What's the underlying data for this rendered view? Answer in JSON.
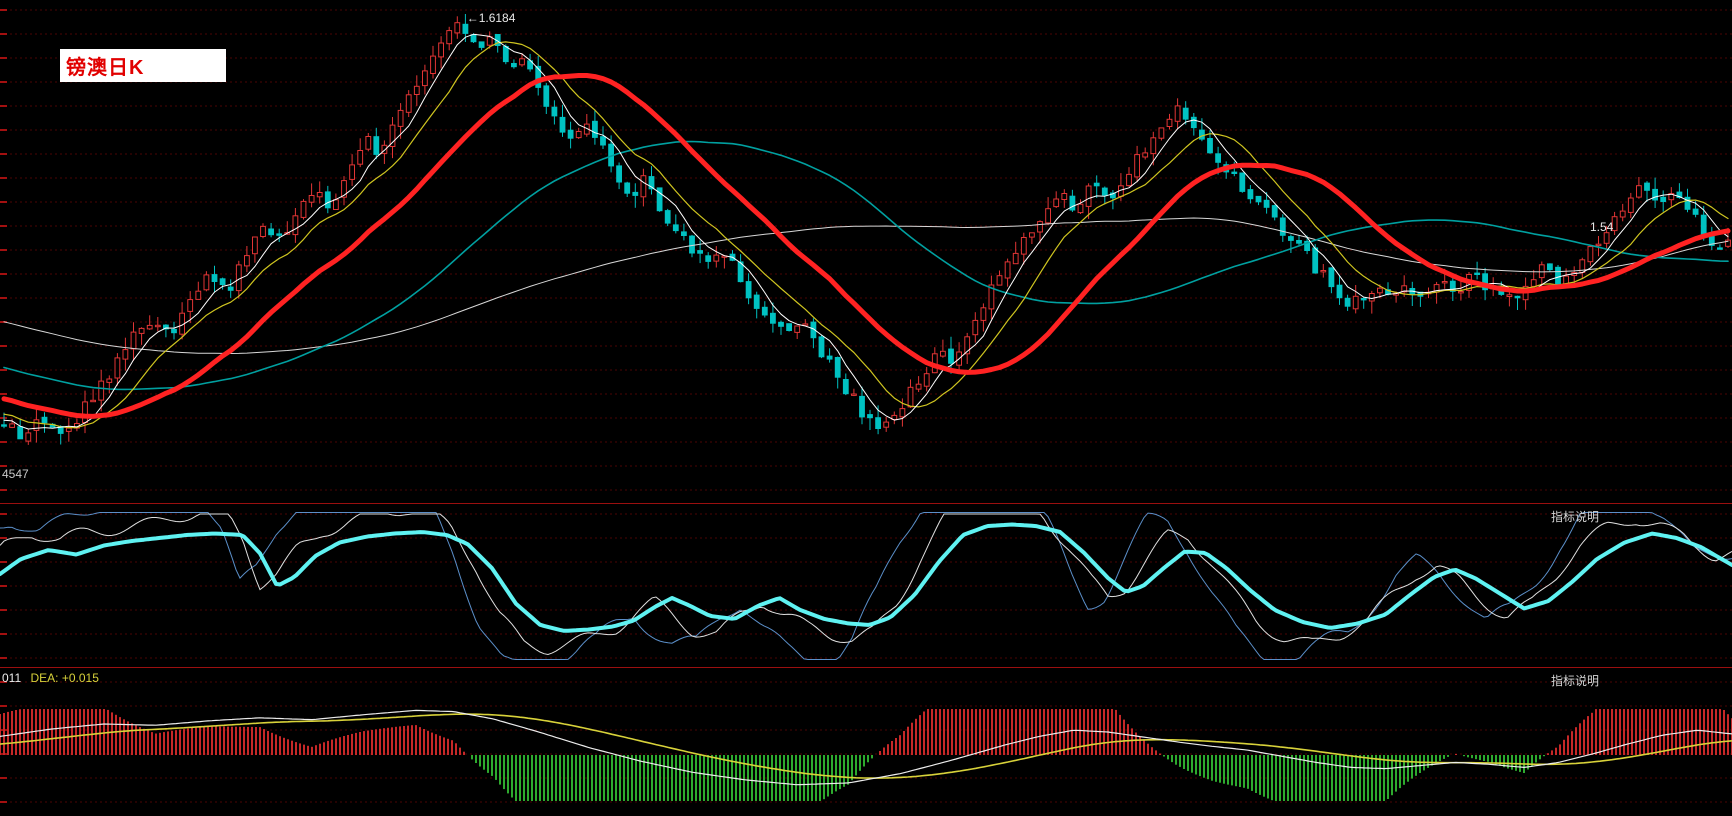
{
  "app": {
    "title": "镑澳日K",
    "indicator_help_label": "指标说明"
  },
  "theme": {
    "background": "#000000",
    "grid_color": "#4d0404",
    "grid_tick_color": "#a31010",
    "separator_color": "#9a0f0f",
    "up_color": "#e23535",
    "down_color": "#00c2c2",
    "thick_ma_color": "#ff2222",
    "dif_color": "#ececec",
    "dea_color": "#d8d23a",
    "annotation_color": "#e8e8e8",
    "title_color": "#e10000",
    "title_bg": "#ffffff"
  },
  "main_chart": {
    "annotations": {
      "peak": {
        "text": "←1.6184",
        "x": 0.266,
        "price": 1.6184
      },
      "last": {
        "text": "1.54",
        "x": 0.918,
        "price": 1.54
      },
      "low_left": {
        "text": "4547",
        "x": 0.0,
        "price": 1.4547
      }
    }
  },
  "macd": {
    "label_prefix": "011",
    "label_dea": "DEA: +0.015"
  },
  "chart_data": [
    {
      "type": "candlestick",
      "title": "镑澳日K",
      "price_axis": {
        "min": 1.448,
        "max": 1.625
      },
      "key_levels": {
        "peak": 1.6184,
        "trough": 1.4547,
        "last": 1.54
      },
      "candle_count": 214,
      "price_path": [
        [
          0.0,
          1.476
        ],
        [
          0.01,
          1.469
        ],
        [
          0.022,
          1.478
        ],
        [
          0.034,
          1.472
        ],
        [
          0.046,
          1.48
        ],
        [
          0.058,
          1.49
        ],
        [
          0.072,
          1.503
        ],
        [
          0.085,
          1.512
        ],
        [
          0.095,
          1.506
        ],
        [
          0.108,
          1.518
        ],
        [
          0.12,
          1.528
        ],
        [
          0.13,
          1.522
        ],
        [
          0.142,
          1.538
        ],
        [
          0.152,
          1.546
        ],
        [
          0.162,
          1.539
        ],
        [
          0.172,
          1.552
        ],
        [
          0.182,
          1.56
        ],
        [
          0.19,
          1.551
        ],
        [
          0.2,
          1.566
        ],
        [
          0.21,
          1.576
        ],
        [
          0.218,
          1.568
        ],
        [
          0.228,
          1.583
        ],
        [
          0.238,
          1.594
        ],
        [
          0.248,
          1.604
        ],
        [
          0.258,
          1.612
        ],
        [
          0.266,
          1.617
        ],
        [
          0.274,
          1.606
        ],
        [
          0.282,
          1.612
        ],
        [
          0.292,
          1.6
        ],
        [
          0.3,
          1.605
        ],
        [
          0.31,
          1.592
        ],
        [
          0.32,
          1.584
        ],
        [
          0.33,
          1.575
        ],
        [
          0.34,
          1.58
        ],
        [
          0.352,
          1.566
        ],
        [
          0.362,
          1.556
        ],
        [
          0.372,
          1.561
        ],
        [
          0.384,
          1.548
        ],
        [
          0.396,
          1.54
        ],
        [
          0.408,
          1.53
        ],
        [
          0.418,
          1.536
        ],
        [
          0.43,
          1.522
        ],
        [
          0.442,
          1.514
        ],
        [
          0.452,
          1.506
        ],
        [
          0.462,
          1.513
        ],
        [
          0.474,
          1.5
        ],
        [
          0.486,
          1.49
        ],
        [
          0.498,
          1.479
        ],
        [
          0.51,
          1.472
        ],
        [
          0.52,
          1.481
        ],
        [
          0.532,
          1.492
        ],
        [
          0.544,
          1.501
        ],
        [
          0.552,
          1.495
        ],
        [
          0.562,
          1.51
        ],
        [
          0.572,
          1.521
        ],
        [
          0.582,
          1.531
        ],
        [
          0.592,
          1.54
        ],
        [
          0.602,
          1.548
        ],
        [
          0.612,
          1.558
        ],
        [
          0.62,
          1.551
        ],
        [
          0.63,
          1.56
        ],
        [
          0.64,
          1.553
        ],
        [
          0.65,
          1.562
        ],
        [
          0.66,
          1.571
        ],
        [
          0.67,
          1.58
        ],
        [
          0.68,
          1.588
        ],
        [
          0.69,
          1.581
        ],
        [
          0.7,
          1.572
        ],
        [
          0.712,
          1.563
        ],
        [
          0.724,
          1.554
        ],
        [
          0.736,
          1.547
        ],
        [
          0.748,
          1.54
        ],
        [
          0.76,
          1.531
        ],
        [
          0.772,
          1.523
        ],
        [
          0.782,
          1.517
        ],
        [
          0.792,
          1.524
        ],
        [
          0.802,
          1.519
        ],
        [
          0.812,
          1.526
        ],
        [
          0.822,
          1.52
        ],
        [
          0.832,
          1.527
        ],
        [
          0.842,
          1.521
        ],
        [
          0.852,
          1.527
        ],
        [
          0.862,
          1.522
        ],
        [
          0.872,
          1.518
        ],
        [
          0.882,
          1.524
        ],
        [
          0.892,
          1.529
        ],
        [
          0.902,
          1.525
        ],
        [
          0.912,
          1.531
        ],
        [
          0.922,
          1.538
        ],
        [
          0.932,
          1.546
        ],
        [
          0.942,
          1.553
        ],
        [
          0.952,
          1.559
        ],
        [
          0.96,
          1.553
        ],
        [
          0.97,
          1.557
        ],
        [
          0.98,
          1.548
        ],
        [
          0.99,
          1.537
        ],
        [
          1.0,
          1.54
        ]
      ],
      "ma_lines": [
        {
          "name": "MA5",
          "period": 5,
          "color": "#ffffff",
          "width": 1
        },
        {
          "name": "MA10",
          "period": 10,
          "color": "#cfc520",
          "width": 1.2
        },
        {
          "name": "MA24",
          "period": 24,
          "color": "#ff2222",
          "width": 5
        },
        {
          "name": "MA55",
          "period": 55,
          "color": "#00a0a0",
          "width": 1.6
        },
        {
          "name": "MA100",
          "period": 100,
          "color": "#d8d8d8",
          "width": 1
        }
      ]
    },
    {
      "type": "line",
      "title": "oscillator-panel",
      "range": [
        0,
        100
      ],
      "series": [
        {
          "name": "main-thick-cyan",
          "color": "#5ff2f2",
          "width": 4,
          "keyframes": [
            [
              0.0,
              58
            ],
            [
              0.012,
              68
            ],
            [
              0.028,
              74
            ],
            [
              0.044,
              71
            ],
            [
              0.06,
              77
            ],
            [
              0.076,
              80
            ],
            [
              0.092,
              82
            ],
            [
              0.108,
              84
            ],
            [
              0.124,
              85
            ],
            [
              0.14,
              84
            ],
            [
              0.15,
              72
            ],
            [
              0.16,
              50
            ],
            [
              0.17,
              56
            ],
            [
              0.182,
              70
            ],
            [
              0.196,
              79
            ],
            [
              0.212,
              83
            ],
            [
              0.228,
              85
            ],
            [
              0.244,
              86
            ],
            [
              0.258,
              84
            ],
            [
              0.27,
              78
            ],
            [
              0.284,
              62
            ],
            [
              0.298,
              38
            ],
            [
              0.312,
              24
            ],
            [
              0.326,
              20
            ],
            [
              0.34,
              21
            ],
            [
              0.354,
              23
            ],
            [
              0.366,
              27
            ],
            [
              0.378,
              36
            ],
            [
              0.388,
              42
            ],
            [
              0.398,
              37
            ],
            [
              0.41,
              30
            ],
            [
              0.424,
              28
            ],
            [
              0.438,
              37
            ],
            [
              0.45,
              42
            ],
            [
              0.462,
              34
            ],
            [
              0.476,
              28
            ],
            [
              0.49,
              25
            ],
            [
              0.502,
              24
            ],
            [
              0.514,
              29
            ],
            [
              0.528,
              44
            ],
            [
              0.542,
              66
            ],
            [
              0.556,
              84
            ],
            [
              0.57,
              90
            ],
            [
              0.584,
              91
            ],
            [
              0.598,
              90
            ],
            [
              0.612,
              86
            ],
            [
              0.626,
              72
            ],
            [
              0.64,
              55
            ],
            [
              0.65,
              46
            ],
            [
              0.66,
              50
            ],
            [
              0.672,
              62
            ],
            [
              0.684,
              73
            ],
            [
              0.696,
              72
            ],
            [
              0.708,
              62
            ],
            [
              0.722,
              47
            ],
            [
              0.736,
              34
            ],
            [
              0.752,
              26
            ],
            [
              0.768,
              22
            ],
            [
              0.784,
              25
            ],
            [
              0.8,
              31
            ],
            [
              0.814,
              44
            ],
            [
              0.828,
              56
            ],
            [
              0.84,
              61
            ],
            [
              0.852,
              55
            ],
            [
              0.866,
              45
            ],
            [
              0.88,
              35
            ],
            [
              0.894,
              40
            ],
            [
              0.908,
              53
            ],
            [
              0.922,
              68
            ],
            [
              0.938,
              79
            ],
            [
              0.954,
              85
            ],
            [
              0.968,
              82
            ],
            [
              0.982,
              76
            ],
            [
              1.0,
              64
            ]
          ]
        },
        {
          "name": "thin-white",
          "color": "#e0e0e0",
          "width": 1,
          "derived": "lead 0.010 gain 1.35"
        },
        {
          "name": "thin-blue",
          "color": "#5b8fc9",
          "width": 1,
          "derived": "lead 0.022 gain 1.8"
        }
      ]
    },
    {
      "type": "macd",
      "label": "011 DEA: +0.015",
      "dea_value": "+0.015",
      "bar_colors": {
        "positive": "#c62828",
        "negative": "#2eaa2e"
      },
      "dif_keyframes": [
        [
          0.0,
          0.3
        ],
        [
          0.03,
          0.42
        ],
        [
          0.06,
          0.5
        ],
        [
          0.09,
          0.48
        ],
        [
          0.12,
          0.55
        ],
        [
          0.15,
          0.6
        ],
        [
          0.18,
          0.57
        ],
        [
          0.21,
          0.65
        ],
        [
          0.24,
          0.72
        ],
        [
          0.262,
          0.7
        ],
        [
          0.285,
          0.58
        ],
        [
          0.31,
          0.38
        ],
        [
          0.34,
          0.12
        ],
        [
          0.37,
          -0.1
        ],
        [
          0.4,
          -0.28
        ],
        [
          0.43,
          -0.4
        ],
        [
          0.46,
          -0.48
        ],
        [
          0.49,
          -0.45
        ],
        [
          0.52,
          -0.3
        ],
        [
          0.55,
          -0.08
        ],
        [
          0.58,
          0.16
        ],
        [
          0.6,
          0.3
        ],
        [
          0.62,
          0.4
        ],
        [
          0.64,
          0.37
        ],
        [
          0.66,
          0.29
        ],
        [
          0.68,
          0.21
        ],
        [
          0.7,
          0.14
        ],
        [
          0.72,
          0.08
        ],
        [
          0.74,
          -0.02
        ],
        [
          0.76,
          -0.12
        ],
        [
          0.78,
          -0.2
        ],
        [
          0.8,
          -0.22
        ],
        [
          0.82,
          -0.17
        ],
        [
          0.84,
          -0.12
        ],
        [
          0.86,
          -0.15
        ],
        [
          0.88,
          -0.2
        ],
        [
          0.9,
          -0.12
        ],
        [
          0.92,
          0.02
        ],
        [
          0.94,
          0.18
        ],
        [
          0.96,
          0.32
        ],
        [
          0.98,
          0.4
        ],
        [
          1.0,
          0.34
        ]
      ]
    }
  ]
}
